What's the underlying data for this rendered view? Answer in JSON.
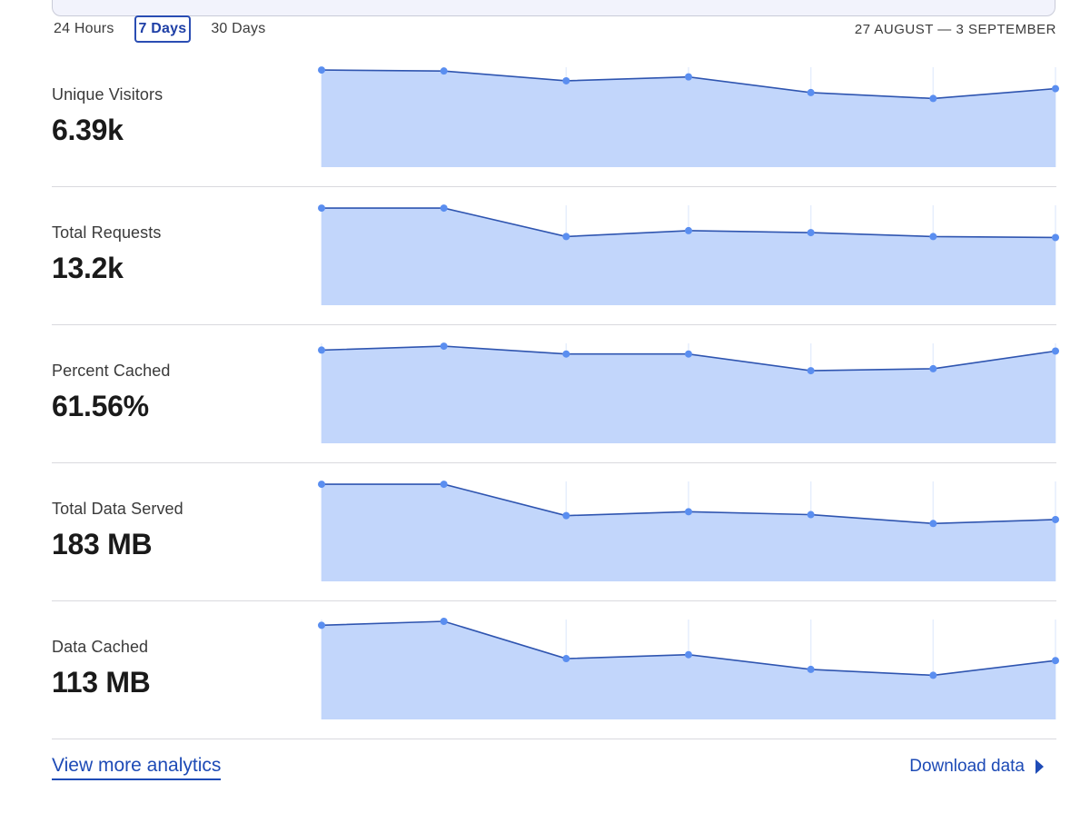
{
  "range_selector": {
    "options": [
      "24 Hours",
      "7 Days",
      "30 Days"
    ],
    "selected": "7 Days"
  },
  "date_range": "27 AUGUST — 3 SEPTEMBER",
  "metrics": [
    {
      "label": "Unique Visitors",
      "value": "6.39k"
    },
    {
      "label": "Total Requests",
      "value": "13.2k"
    },
    {
      "label": "Percent Cached",
      "value": "61.56%"
    },
    {
      "label": "Total Data Served",
      "value": "183 MB"
    },
    {
      "label": "Data Cached",
      "value": "113 MB"
    }
  ],
  "footer": {
    "view_more": "View more analytics",
    "download": "Download data"
  },
  "colors": {
    "area_fill": "#c2d6fb",
    "line": "#2f55b0",
    "point": "#5a8ef0",
    "gridline": "#e6eefc",
    "link": "#1e4bb6"
  },
  "chart_data": [
    {
      "type": "area",
      "series": [
        {
          "values": [
            0.99,
            0.98,
            0.88,
            0.92,
            0.76,
            0.7,
            0.8
          ]
        }
      ]
    },
    {
      "type": "area",
      "series": [
        {
          "values": [
            0.99,
            0.99,
            0.7,
            0.76,
            0.74,
            0.7,
            0.69
          ]
        }
      ]
    },
    {
      "type": "area",
      "series": [
        {
          "values": [
            0.95,
            0.99,
            0.91,
            0.91,
            0.74,
            0.76,
            0.94
          ]
        }
      ]
    },
    {
      "type": "area",
      "series": [
        {
          "values": [
            0.99,
            0.99,
            0.67,
            0.71,
            0.68,
            0.59,
            0.63
          ]
        }
      ]
    },
    {
      "type": "area",
      "series": [
        {
          "values": [
            0.96,
            1.0,
            0.62,
            0.66,
            0.51,
            0.45,
            0.6
          ]
        }
      ]
    }
  ]
}
